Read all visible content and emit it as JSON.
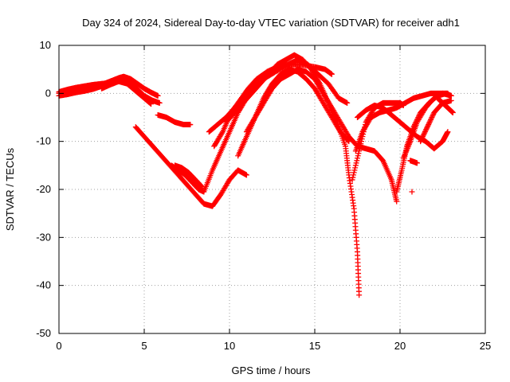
{
  "chart_data": {
    "type": "scatter",
    "title": "Day 324 of 2024, Sidereal Day-to-day VTEC variation (SDTVAR) for receiver adh1",
    "xlabel": "GPS time / hours",
    "ylabel": "SDTVAR / TECUs",
    "xlim": [
      0,
      25
    ],
    "ylim": [
      -50,
      10
    ],
    "xticks": [
      "0",
      "5",
      "10",
      "15",
      "20",
      "25"
    ],
    "yticks": [
      "10",
      "0",
      "-10",
      "-20",
      "-30",
      "-40",
      "-50"
    ],
    "grid": true,
    "marker": "plus",
    "color": "#ff0000",
    "series": [
      {
        "x": [
          0,
          0.5,
          1,
          1.5,
          2,
          2.5,
          3,
          3.5,
          3.8,
          4.2,
          4.6,
          5,
          5.4,
          5.8
        ],
        "y": [
          0,
          0.2,
          0.5,
          0.8,
          1.2,
          1.8,
          2.5,
          3.2,
          3.5,
          3.0,
          2.0,
          1.0,
          0.2,
          -0.5
        ]
      },
      {
        "x": [
          0,
          0.5,
          1,
          1.5,
          2,
          2.5,
          3,
          3.5,
          4,
          4.5,
          5,
          5.5,
          5.9
        ],
        "y": [
          -0.5,
          -0.2,
          0.2,
          0.5,
          0.9,
          1.5,
          2.2,
          2.8,
          2.5,
          1.2,
          -0.5,
          -1.5,
          -2.0
        ]
      },
      {
        "x": [
          0,
          0.5,
          1,
          1.5,
          2,
          2.5,
          3,
          3.5,
          4,
          4.5,
          5,
          5.4
        ],
        "y": [
          0.3,
          0.8,
          1.2,
          1.5,
          1.8,
          2.0,
          2.2,
          2.5,
          2.0,
          0.5,
          -1.0,
          -2.2
        ]
      },
      {
        "x": [
          2.5,
          3,
          3.5,
          4,
          4.5
        ],
        "y": [
          1.0,
          1.8,
          2.5,
          2.8,
          2.0
        ]
      },
      {
        "x": [
          5.8,
          6.3,
          6.8,
          7.3,
          7.7
        ],
        "y": [
          -4.5,
          -5.0,
          -6.0,
          -6.5,
          -6.5
        ]
      },
      {
        "x": [
          4.5,
          5,
          5.5,
          6,
          6.5,
          7,
          7.5,
          8,
          8.5,
          9,
          9.5,
          10,
          10.5,
          11
        ],
        "y": [
          -7,
          -9,
          -11,
          -13,
          -15,
          -17,
          -19,
          -21,
          -23,
          -23.5,
          -21,
          -18,
          -16,
          -17
        ]
      },
      {
        "x": [
          6.6,
          7,
          7.4,
          7.8,
          8.2,
          8.5,
          9,
          9.5,
          10,
          10.5,
          11
        ],
        "y": [
          -15,
          -16,
          -17,
          -18.5,
          -20,
          -20.5,
          -16,
          -12,
          -8,
          -4,
          -1
        ]
      },
      {
        "x": [
          6.8,
          7.2,
          7.6,
          8,
          8.4
        ],
        "y": [
          -15,
          -15.5,
          -16.5,
          -18,
          -19.5
        ]
      },
      {
        "x": [
          8.8,
          9.3,
          9.8,
          10.3,
          10.8,
          11.3,
          12,
          12.7,
          13.5,
          14.2,
          15,
          15.6,
          16
        ],
        "y": [
          -8,
          -6.5,
          -5,
          -3,
          -1,
          1,
          3,
          4.5,
          6,
          6,
          5.5,
          5,
          4
        ]
      },
      {
        "x": [
          9.1,
          9.6,
          10.1,
          10.6,
          11.1,
          11.6,
          12.2,
          12.8,
          13.4,
          14,
          14.6,
          15.2,
          15.8,
          16.4,
          16.9
        ],
        "y": [
          -11,
          -8,
          -4,
          -1.5,
          1,
          3,
          4.5,
          5.5,
          6,
          7,
          6,
          4,
          2,
          -1,
          -2
        ]
      },
      {
        "x": [
          9.8,
          10.3,
          10.8,
          11.3,
          11.8,
          12.3,
          12.8,
          13.3,
          13.8,
          14.3,
          14.8,
          15.3,
          15.8,
          16.3,
          16.8,
          17,
          17.3,
          17.5,
          17.6
        ],
        "y": [
          -6,
          -4,
          -2,
          0,
          2,
          4,
          6,
          7,
          8,
          7,
          5,
          2,
          -2,
          -6,
          -11,
          -17,
          -24,
          -33,
          -42
        ]
      },
      {
        "x": [
          10.5,
          11,
          11.5,
          12,
          12.5,
          13,
          13.5,
          14,
          14.5,
          15,
          15.5,
          16,
          16.5,
          17
        ],
        "y": [
          -13,
          -9,
          -5,
          -1,
          2,
          4,
          5,
          4.5,
          3,
          1,
          -2,
          -5,
          -8,
          -10
        ]
      },
      {
        "x": [
          11,
          11.5,
          12,
          12.5,
          13,
          13.5,
          14,
          14.5,
          15,
          15.5,
          16,
          16.5,
          17,
          17.5,
          18,
          18.5,
          19,
          19.5,
          19.8
        ],
        "y": [
          -8,
          -5,
          -2,
          1,
          3,
          4,
          5,
          4.5,
          3,
          0,
          -3,
          -6,
          -9,
          -11,
          -11.5,
          -12,
          -14,
          -18,
          -22.5
        ]
      },
      {
        "x": [
          17.2,
          17.6,
          18,
          18.5,
          19,
          19.5,
          20,
          20.2
        ],
        "y": [
          -18,
          -12,
          -6,
          -3,
          -2,
          -2,
          -2,
          -2.5
        ]
      },
      {
        "x": [
          17.4,
          17.8,
          18.3,
          18.8,
          19.3,
          19.8,
          20.3,
          20.8,
          21.3,
          21.8,
          22.3,
          22.8
        ],
        "y": [
          -12,
          -8,
          -5,
          -4,
          -3.5,
          -3,
          -2,
          -1,
          -0.5,
          0,
          0,
          0
        ]
      },
      {
        "x": [
          17.5,
          18,
          18.5,
          19,
          19.5,
          20,
          20.5,
          21,
          21.5,
          22,
          22.5,
          22.8
        ],
        "y": [
          -5,
          -3.5,
          -2.5,
          -3,
          -4.5,
          -6,
          -7.5,
          -9,
          -10,
          -11.5,
          -10,
          -8
        ]
      },
      {
        "x": [
          19.8,
          20.1,
          20.4,
          20.8,
          21.2,
          21.7,
          22.2,
          22.7,
          23
        ],
        "y": [
          -20.5,
          -16,
          -11,
          -7,
          -4,
          -2,
          -0.5,
          0,
          -0.5
        ]
      },
      {
        "x": [
          20.2,
          20.6,
          21,
          21.5,
          22,
          22.5,
          23
        ],
        "y": [
          -13.5,
          -10,
          -6,
          -3,
          -1,
          0,
          -0.5
        ]
      },
      {
        "x": [
          20.6,
          21
        ],
        "y": [
          -14,
          -14.5
        ]
      },
      {
        "x": [
          20.7
        ],
        "y": [
          -20.5
        ]
      },
      {
        "x": [
          21.2,
          21.6,
          22,
          22.5,
          23
        ],
        "y": [
          -10,
          -7,
          -4,
          -2,
          -1.5
        ]
      },
      {
        "x": [
          22.2,
          22.5,
          22.8,
          23.1
        ],
        "y": [
          -1,
          -2,
          -3,
          -4
        ]
      }
    ]
  }
}
